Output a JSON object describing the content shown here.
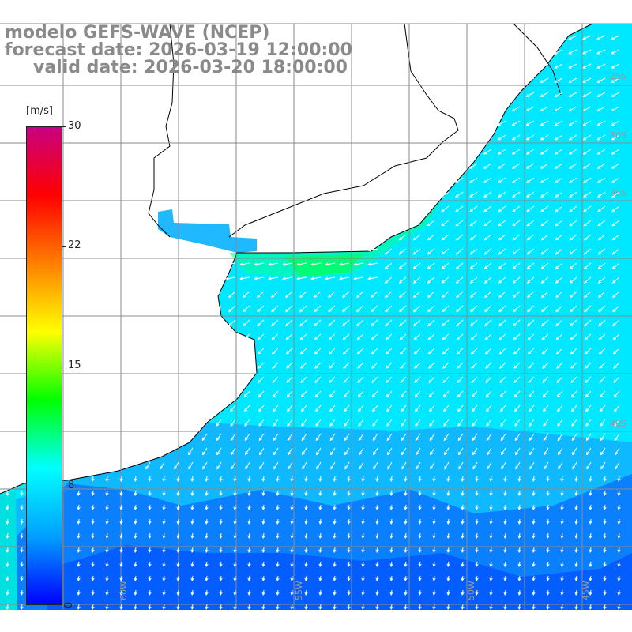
{
  "title": {
    "model": "modelo GEFS-WAVE (NCEP)",
    "forecast": "forecast date: 2026-03-19 12:00:00",
    "valid": "valid date: 2026-03-20 18:00:00"
  },
  "colorbar": {
    "unit": "[m/s]",
    "ticks": [
      "30",
      "22",
      "15",
      "8",
      "0"
    ],
    "tick_values": [
      30,
      22,
      15,
      8,
      0
    ],
    "range": [
      0,
      30
    ],
    "colors": [
      "#0000ff",
      "#00a0ff",
      "#00ffff",
      "#00ff00",
      "#ffff00",
      "#ff8000",
      "#ff0000",
      "#c8007f"
    ]
  },
  "map": {
    "land_color": "#ffffff",
    "ocean_color": "#00e8ff",
    "grid_color": "#8a8a8a",
    "arrow_color": "#ffffff",
    "lat_labels": [
      "25S",
      "30S",
      "35S",
      "40S"
    ],
    "lon_labels": [
      "60W",
      "55W",
      "50W",
      "45W"
    ]
  }
}
